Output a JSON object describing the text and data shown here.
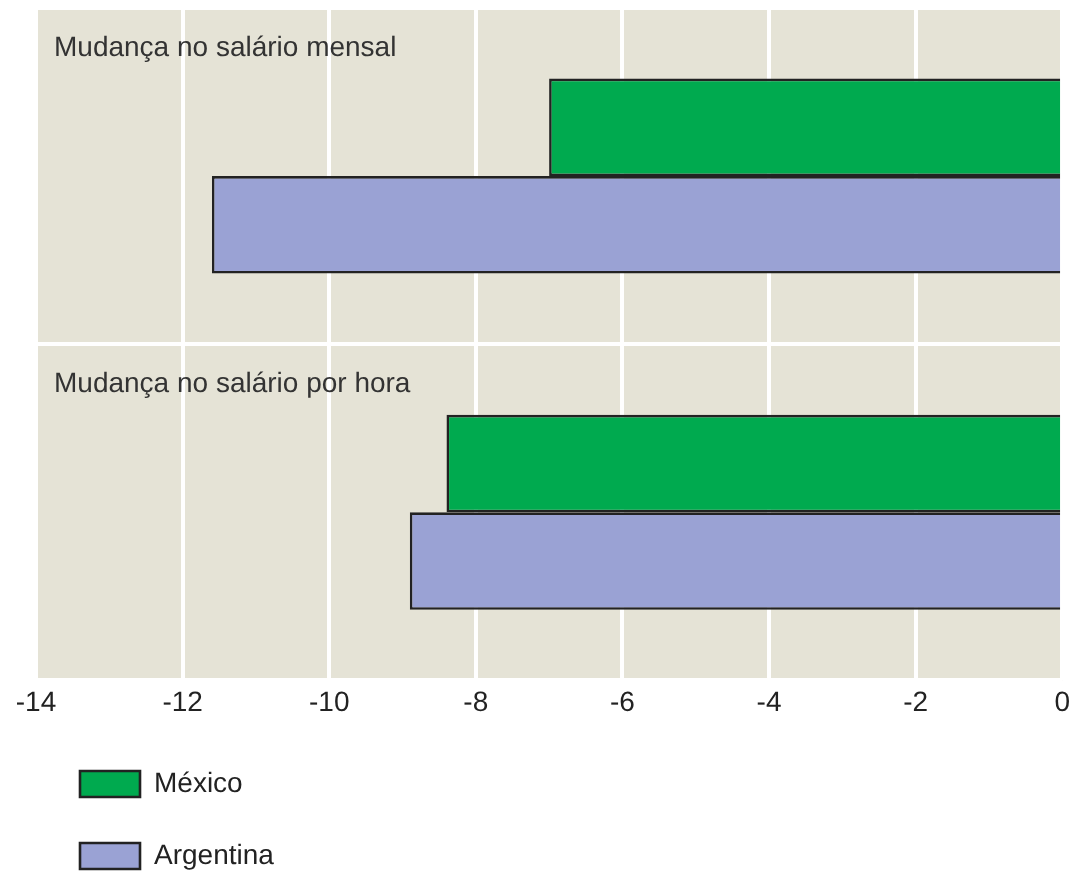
{
  "chart_data": {
    "type": "bar",
    "orientation": "horizontal",
    "categories": [
      "Mudança no salário mensal",
      "Mudança no salário por hora"
    ],
    "series": [
      {
        "name": "México",
        "color": "#00aa4f",
        "values": [
          -7.0,
          -8.4
        ]
      },
      {
        "name": "Argentina",
        "color": "#9aa2d4",
        "values": [
          -11.6,
          -8.9
        ]
      }
    ],
    "xlim": [
      -14,
      0
    ],
    "xticks": [
      -14,
      -12,
      -10,
      -8,
      -6,
      -4,
      -2,
      0
    ],
    "grid": true,
    "legend": "bottom",
    "tick_labels": "x"
  }
}
